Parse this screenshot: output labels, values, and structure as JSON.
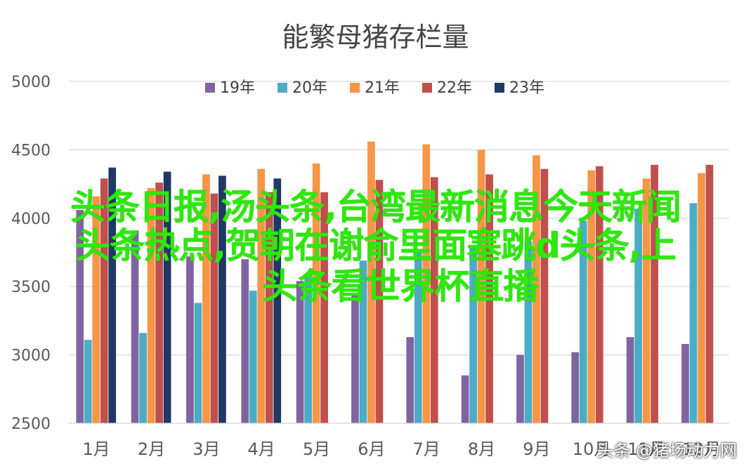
{
  "chart_data": {
    "type": "bar",
    "title": "能繁母猪存栏量",
    "categories": [
      "1月",
      "2月",
      "3月",
      "4月",
      "5月",
      "6月",
      "7月",
      "8月",
      "9月",
      "10月",
      "11月",
      "12月"
    ],
    "ylim": [
      2500,
      5000
    ],
    "yticks": [
      2500,
      3000,
      3500,
      4000,
      4500,
      5000
    ],
    "grid": true,
    "legend_position": "top",
    "series": [
      {
        "name": "19年",
        "color": "#8064a2",
        "values": [
          4060,
          3910,
          3720,
          3700,
          3540,
          3440,
          3130,
          2850,
          3000,
          3020,
          3130,
          3080
        ]
      },
      {
        "name": "20年",
        "color": "#4bacc6",
        "values": [
          3110,
          3160,
          3380,
          3470,
          3590,
          3690,
          3770,
          3780,
          3830,
          3980,
          4070,
          4110
        ]
      },
      {
        "name": "21年",
        "color": "#f79646",
        "values": [
          4160,
          4220,
          4320,
          4360,
          4400,
          4560,
          4540,
          4500,
          4460,
          4350,
          4290,
          4330
        ]
      },
      {
        "name": "22年",
        "color": "#c0504d",
        "values": [
          4290,
          4260,
          4180,
          4190,
          4190,
          4280,
          4300,
          4320,
          4360,
          4380,
          4390,
          4390
        ]
      },
      {
        "name": "23年",
        "color": "#1f3864",
        "values": [
          4370,
          4340,
          4310,
          4290,
          null,
          null,
          null,
          null,
          null,
          null,
          null,
          null
        ]
      }
    ]
  },
  "overlay": {
    "line1": "头条日报,汤头条,台湾最新消息今天新闻",
    "line2": "头条热点,贺朝在谢俞里面塞跳d头条,上",
    "line3": "头条看世界杯直播"
  },
  "watermark": "头条 @猪场动力网"
}
